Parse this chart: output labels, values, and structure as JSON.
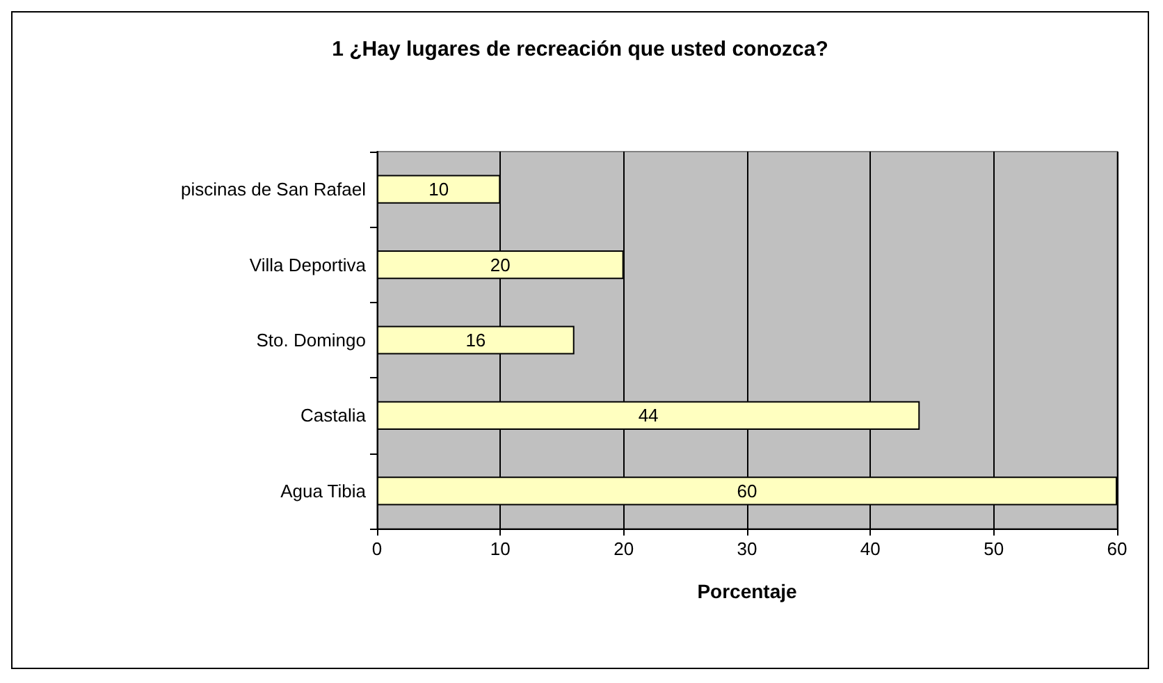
{
  "chart_data": {
    "type": "bar",
    "orientation": "horizontal",
    "title": "1 ¿Hay lugares de recreación que usted conozca?",
    "xlabel": "Porcentaje",
    "categories": [
      "piscinas de San Rafael",
      "Villa Deportiva",
      "Sto. Domingo",
      "Castalia",
      "Agua Tibia"
    ],
    "values": [
      10,
      20,
      16,
      44,
      60
    ],
    "color": "#ffffc0",
    "xlim": [
      0,
      60
    ],
    "xticks": [
      0,
      10,
      20,
      30,
      40,
      50,
      60
    ],
    "grid": "x",
    "data_labels": true
  }
}
